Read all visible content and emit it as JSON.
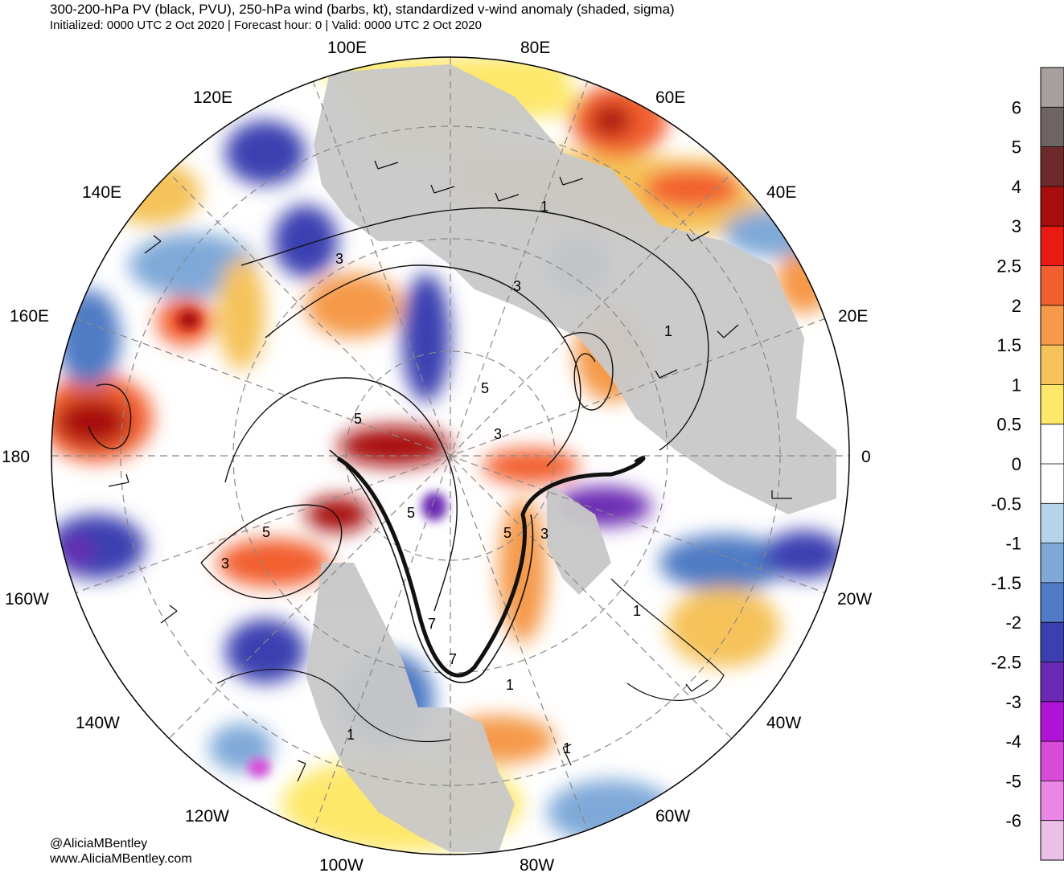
{
  "header": {
    "title": "300-200-hPa PV (black, PVU), 250-hPa wind (barbs, kt), standardized v-wind anomaly (shaded, sigma)",
    "subtitle": "Initialized: 0000 UTC 2 Oct 2020 | Forecast hour: 0 | Valid: 0000 UTC 2 Oct 2020"
  },
  "map": {
    "projection": "north-polar-stereographic",
    "longitude_labels": [
      "100E",
      "80E",
      "120E",
      "60E",
      "140E",
      "40E",
      "160E",
      "20E",
      "180",
      "0",
      "160W",
      "20W",
      "140W",
      "40W",
      "120W",
      "60W",
      "100W",
      "80W"
    ],
    "pv_contour_labels": [
      "1",
      "3",
      "3",
      "5",
      "5",
      "3",
      "5",
      "5",
      "3",
      "3",
      "5",
      "7",
      "7",
      "1",
      "1",
      "1",
      "1",
      "1"
    ]
  },
  "colorbar": {
    "levels": [
      "6",
      "5",
      "4",
      "3",
      "2.5",
      "2",
      "1.5",
      "1",
      "0.5",
      "0",
      "-0.5",
      "-1",
      "-1.5",
      "-2",
      "-2.5",
      "-3",
      "-4",
      "-5",
      "-6"
    ],
    "colors": [
      "#a8a09e",
      "#6e6462",
      "#6e2a2a",
      "#a80d0d",
      "#e81a12",
      "#f25f2f",
      "#f59a4a",
      "#f5c35a",
      "#fde86a",
      "#ffffff",
      "#ffffff",
      "#b5d3ea",
      "#7fa9d8",
      "#4f7cc4",
      "#3b3fb0",
      "#6a2ab3",
      "#b113d6",
      "#d84ad8",
      "#ea86e6",
      "#ebbfe7"
    ]
  },
  "footer": {
    "handle": "@AliciaMBentley",
    "website": "www.AliciaMBentley.com"
  }
}
